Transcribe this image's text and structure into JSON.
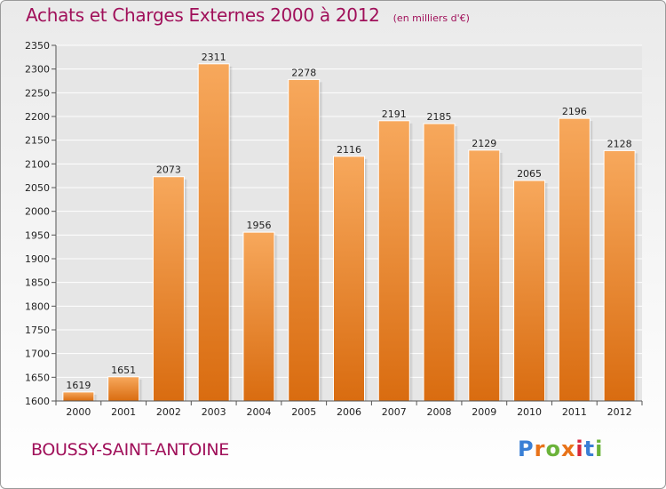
{
  "header": {
    "title": "Achats et Charges Externes 2000 à 2012",
    "unit": "(en milliers d'€)"
  },
  "footer": {
    "commune": "BOUSSY-SAINT-ANTOINE",
    "logo_text": "Proxiti"
  },
  "colors": {
    "title": "#a0105a",
    "bar_top": "#f7a85c",
    "bar_bottom": "#d96c10",
    "grid": "#ffffff",
    "logo": [
      "#3a7fd5",
      "#e8731a",
      "#6bb33a",
      "#e8731a",
      "#d8243a",
      "#3a7fd5",
      "#6bb33a"
    ]
  },
  "chart_data": {
    "type": "bar",
    "title": "Achats et Charges Externes 2000 à 2012",
    "subtitle": "(en milliers d'€)",
    "categories": [
      "2000",
      "2001",
      "2002",
      "2003",
      "2004",
      "2005",
      "2006",
      "2007",
      "2008",
      "2009",
      "2010",
      "2011",
      "2012"
    ],
    "values": [
      1619,
      1651,
      2073,
      2311,
      1956,
      2278,
      2116,
      2191,
      2185,
      2129,
      2065,
      2196,
      2128
    ],
    "ylim": [
      1600,
      2350
    ],
    "yticks": [
      1600,
      1650,
      1700,
      1750,
      1800,
      1850,
      1900,
      1950,
      2000,
      2050,
      2100,
      2150,
      2200,
      2250,
      2300,
      2350
    ],
    "grid": true,
    "legend": "none"
  }
}
